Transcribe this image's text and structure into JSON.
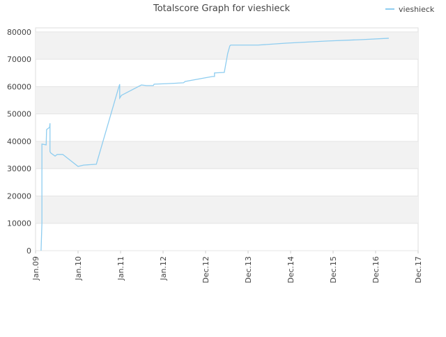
{
  "chart_data": {
    "type": "line",
    "title": "Totalscore Graph for vieshieck",
    "x": [
      0.13,
      0.15,
      0.15,
      0.25,
      0.26,
      0.33,
      0.34,
      0.34,
      0.36,
      0.46,
      0.51,
      0.64,
      1.0,
      1.13,
      1.43,
      1.95,
      1.98,
      1.98,
      2.02,
      2.49,
      2.61,
      2.77,
      2.79,
      3.1,
      3.48,
      3.52,
      4.16,
      4.21,
      4.21,
      4.44,
      4.52,
      4.57,
      4.59,
      5.23,
      5.89,
      6.87,
      7.69,
      8.31
    ],
    "series": [
      {
        "name": "vieshieck",
        "color": "#8ecdf0",
        "values": [
          0,
          10000,
          39000,
          38700,
          44300,
          45100,
          46600,
          36200,
          35700,
          34600,
          35200,
          35200,
          30800,
          31300,
          31600,
          59400,
          60900,
          55800,
          56800,
          60600,
          60400,
          60400,
          60900,
          61100,
          61400,
          61900,
          63700,
          63700,
          65000,
          65200,
          72100,
          74900,
          75200,
          75200,
          75900,
          76700,
          77200,
          77700
        ]
      }
    ],
    "xlim": [
      0,
      9
    ],
    "xticks": [
      {
        "value": 0,
        "label": "Jan.09"
      },
      {
        "value": 1,
        "label": "Jan.10"
      },
      {
        "value": 2,
        "label": "Jan.11"
      },
      {
        "value": 3,
        "label": "Jan.12"
      },
      {
        "value": 4,
        "label": "Dec.12"
      },
      {
        "value": 5,
        "label": "Dec.13"
      },
      {
        "value": 6,
        "label": "Dec.14"
      },
      {
        "value": 7,
        "label": "Dec.15"
      },
      {
        "value": 8,
        "label": "Dec.16"
      },
      {
        "value": 9,
        "label": "Dec.17"
      }
    ],
    "ylim": [
      0,
      81500
    ],
    "yticks": [
      0,
      10000,
      20000,
      30000,
      40000,
      50000,
      60000,
      70000,
      80000
    ],
    "grid": true,
    "legend": "top-right"
  }
}
